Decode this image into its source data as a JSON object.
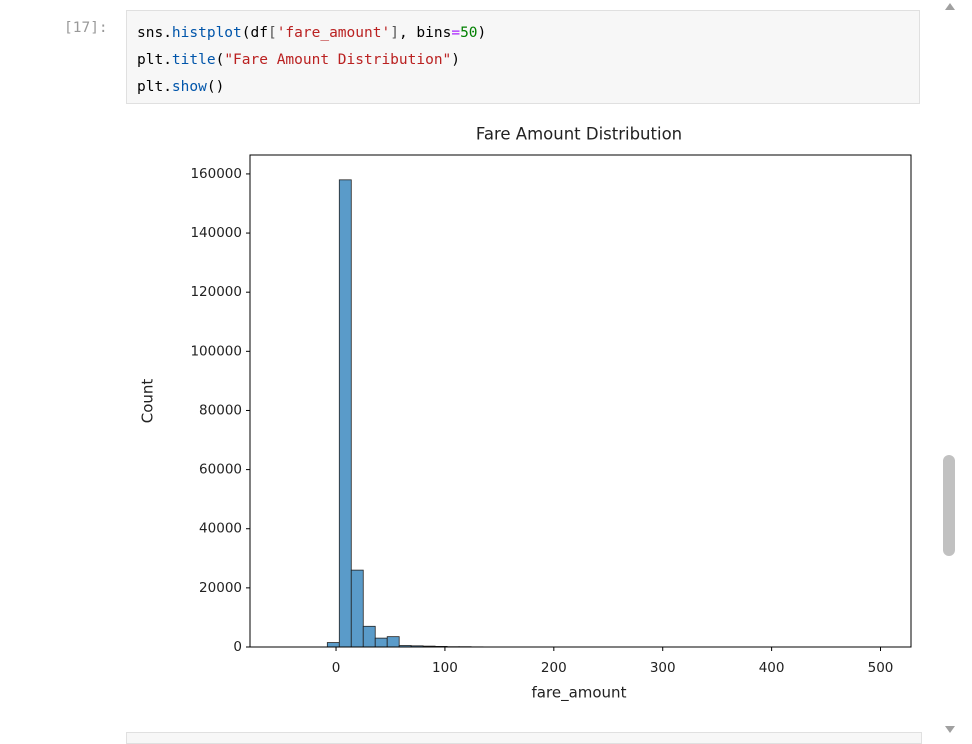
{
  "cell": {
    "prompt": "[17]:",
    "code": [
      [
        "sns.",
        "histplot",
        "(df",
        "[",
        "'fare_amount'",
        "]",
        ", bins",
        "=",
        "50",
        ")"
      ],
      [
        "plt.",
        "title",
        "(",
        "\"Fare Amount Distribution\"",
        ")"
      ],
      [
        "plt.",
        "show",
        "()"
      ]
    ]
  },
  "chart_data": {
    "type": "histogram",
    "title": "Fare Amount Distribution",
    "x_label": "fare_amount",
    "y_label": "Count",
    "bins": [
      -52,
      -41,
      -30,
      -19,
      -8,
      3,
      14,
      25,
      36,
      47,
      58,
      69,
      80,
      91,
      102,
      113,
      124,
      135,
      146,
      157,
      168,
      179,
      190,
      201,
      212,
      223,
      234,
      245,
      256,
      267,
      278,
      289,
      300,
      311,
      322,
      333,
      344,
      355,
      366,
      377,
      388,
      399,
      410,
      421,
      432,
      443,
      454,
      465,
      476,
      487,
      498
    ],
    "values": [
      0,
      0,
      0,
      0,
      1500,
      158000,
      26000,
      7000,
      3000,
      3500,
      500,
      400,
      300,
      200,
      100,
      100,
      50,
      30,
      20,
      10,
      10,
      0,
      0,
      10,
      0,
      0,
      0,
      0,
      0,
      0,
      0,
      0,
      0,
      0,
      0,
      0,
      0,
      0,
      0,
      0,
      0,
      0,
      0,
      0,
      0,
      0,
      0,
      0,
      0,
      10
    ],
    "color": "#5a9bc9",
    "xlim": [
      -79,
      528
    ],
    "ylim": [
      0,
      166400
    ],
    "xticks": [
      0,
      100,
      200,
      300,
      400,
      500
    ],
    "yticks": [
      0,
      20000,
      40000,
      60000,
      80000,
      100000,
      120000,
      140000,
      160000
    ]
  }
}
